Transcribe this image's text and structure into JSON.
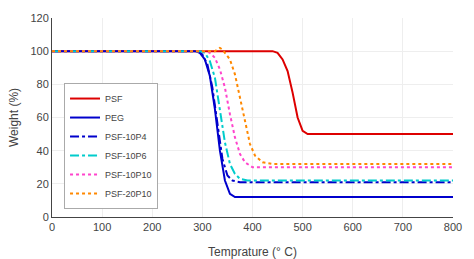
{
  "chart_data": {
    "type": "line",
    "xlabel": "Temprature (° C)",
    "ylabel": "Weight (%)",
    "xlim": [
      0,
      800
    ],
    "ylim": [
      0,
      120
    ],
    "xticks": [
      0,
      100,
      200,
      300,
      400,
      500,
      600,
      700,
      800
    ],
    "yticks": [
      0,
      20,
      40,
      60,
      80,
      100,
      120
    ],
    "grid": true,
    "legend": "lower left",
    "series": [
      {
        "name": "PSF",
        "color": "#dd0000",
        "line_style": "solid",
        "x": [
          0,
          440,
          450,
          460,
          470,
          480,
          490,
          500,
          510,
          520,
          800
        ],
        "values": [
          100,
          100,
          99,
          95,
          88,
          75,
          60,
          52,
          50,
          50,
          50
        ]
      },
      {
        "name": "PEG",
        "color": "#0000cc",
        "line_style": "solid",
        "x": [
          0,
          285,
          295,
          305,
          315,
          325,
          335,
          345,
          355,
          365,
          380,
          800
        ],
        "values": [
          100,
          100,
          99,
          95,
          85,
          65,
          40,
          22,
          14,
          12,
          12,
          12
        ]
      },
      {
        "name": "PSF-10P4",
        "color": "#0000cc",
        "line_style": "dashdot",
        "x": [
          0,
          290,
          300,
          310,
          320,
          330,
          340,
          350,
          360,
          375,
          800
        ],
        "values": [
          100,
          100,
          98,
          92,
          78,
          55,
          35,
          25,
          22,
          21,
          21
        ]
      },
      {
        "name": "PSF-10P6",
        "color": "#00cccc",
        "line_style": "dashdot",
        "x": [
          0,
          295,
          305,
          315,
          325,
          335,
          345,
          355,
          365,
          375,
          390,
          800
        ],
        "values": [
          100,
          100,
          99,
          94,
          84,
          65,
          45,
          32,
          26,
          23,
          22,
          22
        ]
      },
      {
        "name": "PSF-10P10",
        "color": "#ff44cc",
        "line_style": "dotted",
        "x": [
          0,
          305,
          315,
          325,
          335,
          345,
          355,
          365,
          375,
          385,
          400,
          800
        ],
        "values": [
          100,
          100,
          99,
          96,
          89,
          78,
          62,
          48,
          38,
          33,
          30,
          30
        ]
      },
      {
        "name": "PSF-20P10",
        "color": "#ff8800",
        "line_style": "dotted",
        "x": [
          0,
          325,
          335,
          340,
          345,
          355,
          365,
          375,
          385,
          395,
          405,
          420,
          440,
          800
        ],
        "values": [
          100,
          100,
          102,
          101,
          99,
          95,
          86,
          72,
          56,
          44,
          37,
          33,
          32,
          32
        ]
      }
    ]
  }
}
